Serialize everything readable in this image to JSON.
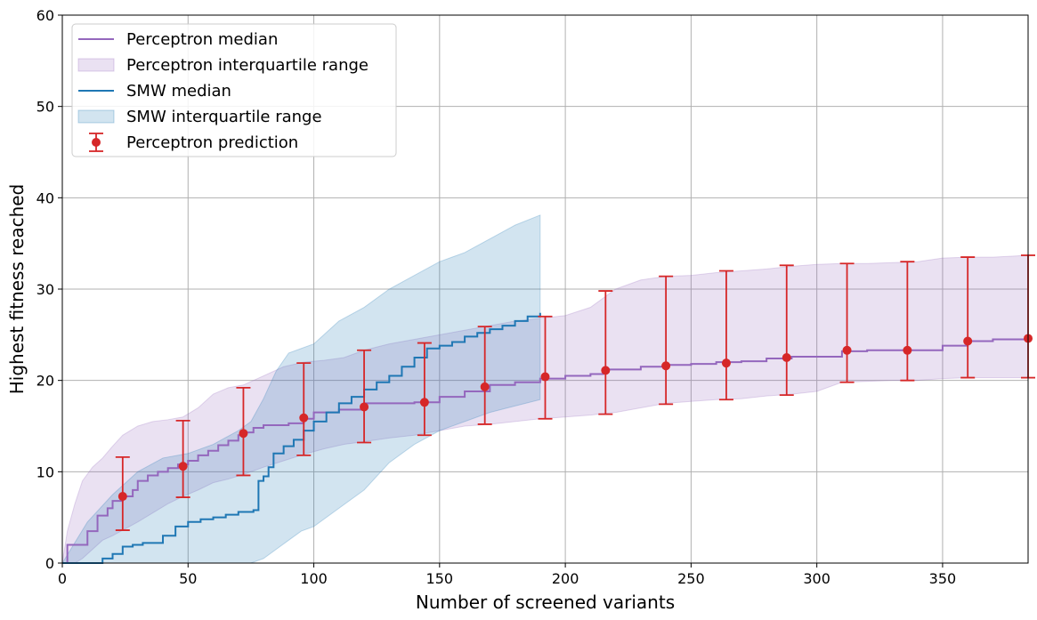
{
  "chart_data": {
    "type": "line",
    "title": "",
    "xlabel": "Number of screened variants",
    "ylabel": "Highest fitness reached",
    "xlim": [
      0,
      384
    ],
    "ylim": [
      0,
      60
    ],
    "xticks": [
      0,
      50,
      100,
      150,
      200,
      250,
      300,
      350
    ],
    "yticks": [
      0,
      10,
      20,
      30,
      40,
      50,
      60
    ],
    "grid": true,
    "legend_position": "top-left",
    "legend": [
      {
        "label": "Perceptron median",
        "kind": "line",
        "color": "#9467bd"
      },
      {
        "label": "Perceptron interquartile range",
        "kind": "band",
        "color": "#9467bd"
      },
      {
        "label": "SMW median",
        "kind": "line",
        "color": "#1f77b4"
      },
      {
        "label": "SMW interquartile range",
        "kind": "band",
        "color": "#1f77b4"
      },
      {
        "label": "Perceptron prediction",
        "kind": "errorbar",
        "color": "#d62728"
      }
    ],
    "series": [
      {
        "name": "Perceptron median",
        "kind": "step-line",
        "color": "#9467bd",
        "x": [
          0,
          2,
          8,
          10,
          14,
          18,
          20,
          24,
          28,
          30,
          34,
          38,
          42,
          46,
          50,
          54,
          58,
          62,
          66,
          70,
          72,
          76,
          80,
          90,
          96,
          100,
          110,
          120,
          140,
          150,
          160,
          170,
          180,
          190,
          200,
          210,
          215,
          230,
          240,
          250,
          260,
          270,
          280,
          290,
          300,
          310,
          320,
          330,
          340,
          350,
          360,
          370,
          384
        ],
        "y": [
          0,
          2,
          2,
          3.5,
          5.2,
          6.0,
          6.8,
          7.3,
          8.0,
          9.0,
          9.6,
          10.0,
          10.4,
          10.8,
          11.2,
          11.8,
          12.3,
          12.9,
          13.4,
          14.0,
          14.3,
          14.8,
          15.1,
          15.3,
          15.8,
          16.5,
          16.8,
          17.5,
          17.6,
          18.2,
          18.8,
          19.5,
          19.8,
          20.2,
          20.5,
          20.7,
          21.2,
          21.5,
          21.7,
          21.8,
          22.0,
          22.1,
          22.4,
          22.6,
          22.6,
          23.2,
          23.3,
          23.3,
          23.3,
          23.8,
          24.3,
          24.5,
          24.5
        ]
      },
      {
        "name": "SMW median",
        "kind": "step-line",
        "color": "#1f77b4",
        "x": [
          0,
          14,
          16,
          20,
          24,
          28,
          32,
          40,
          45,
          50,
          55,
          60,
          65,
          70,
          76,
          78,
          80,
          82,
          84,
          88,
          92,
          96,
          100,
          105,
          110,
          115,
          120,
          125,
          130,
          135,
          140,
          145,
          150,
          155,
          160,
          165,
          170,
          175,
          180,
          185,
          190
        ],
        "y": [
          0,
          0,
          0.5,
          1.0,
          1.8,
          2.0,
          2.2,
          3.0,
          4.0,
          4.5,
          4.8,
          5.0,
          5.3,
          5.6,
          5.8,
          9.0,
          9.5,
          10.5,
          12.0,
          12.8,
          13.5,
          14.5,
          15.5,
          16.5,
          17.5,
          18.2,
          19.0,
          19.8,
          20.5,
          21.5,
          22.5,
          23.5,
          23.8,
          24.2,
          24.8,
          25.2,
          25.6,
          26.0,
          26.5,
          27.0,
          27.4
        ]
      }
    ],
    "bands": [
      {
        "name": "Perceptron interquartile range",
        "color": "#9467bd",
        "x": [
          0,
          2,
          5,
          8,
          12,
          16,
          20,
          24,
          30,
          36,
          42,
          48,
          54,
          60,
          66,
          72,
          80,
          88,
          96,
          104,
          112,
          120,
          130,
          140,
          150,
          160,
          170,
          180,
          190,
          200,
          210,
          220,
          230,
          240,
          250,
          260,
          270,
          280,
          290,
          300,
          310,
          320,
          330,
          340,
          350,
          360,
          370,
          384
        ],
        "low": [
          0,
          0,
          0,
          0.5,
          1.5,
          2.5,
          3.0,
          3.6,
          4.5,
          5.5,
          6.5,
          7.3,
          8.0,
          8.8,
          9.2,
          9.7,
          10.5,
          11.2,
          11.9,
          12.5,
          13.0,
          13.3,
          13.7,
          14.0,
          14.5,
          15.0,
          15.2,
          15.5,
          15.8,
          16.0,
          16.2,
          16.5,
          17.0,
          17.5,
          17.7,
          17.9,
          18.0,
          18.3,
          18.5,
          18.8,
          19.8,
          19.9,
          20.0,
          20.0,
          20.2,
          20.3,
          20.3,
          20.3
        ],
        "high": [
          0,
          3.5,
          6.5,
          9.0,
          10.5,
          11.5,
          12.8,
          14.0,
          15.0,
          15.5,
          15.7,
          16.0,
          17.0,
          18.5,
          19.2,
          19.5,
          20.5,
          21.5,
          22.0,
          22.2,
          22.5,
          23.3,
          24.0,
          24.5,
          25.0,
          25.5,
          26.0,
          26.5,
          26.8,
          27.1,
          28.0,
          30.0,
          31.0,
          31.4,
          31.5,
          31.8,
          32.0,
          32.2,
          32.5,
          32.7,
          32.8,
          32.8,
          32.9,
          33.0,
          33.4,
          33.5,
          33.5,
          33.7
        ]
      },
      {
        "name": "SMW interquartile range",
        "color": "#1f77b4",
        "x": [
          0,
          10,
          20,
          24,
          30,
          40,
          50,
          60,
          70,
          75,
          80,
          85,
          90,
          95,
          100,
          110,
          120,
          130,
          140,
          150,
          160,
          170,
          180,
          190
        ],
        "low": [
          0,
          0,
          0,
          0,
          0,
          0,
          0,
          0,
          0,
          0,
          0.5,
          1.5,
          2.5,
          3.5,
          4.0,
          6.0,
          8.0,
          11.0,
          13.0,
          14.5,
          15.5,
          16.5,
          17.2,
          17.9
        ],
        "high": [
          0,
          4.5,
          7.5,
          8.5,
          10.0,
          11.5,
          12.0,
          13.0,
          14.5,
          15.5,
          18.0,
          21.0,
          23.0,
          23.5,
          24.0,
          26.5,
          28.0,
          30.0,
          31.5,
          33.0,
          34.0,
          35.5,
          37.0,
          38.1
        ]
      }
    ],
    "errorbars": {
      "name": "Perceptron prediction",
      "color": "#d62728",
      "x": [
        24,
        48,
        72,
        96,
        120,
        144,
        168,
        192,
        216,
        240,
        264,
        288,
        312,
        336,
        360,
        384
      ],
      "y": [
        7.3,
        10.6,
        14.2,
        15.9,
        17.1,
        17.6,
        19.3,
        20.4,
        21.1,
        21.6,
        21.9,
        22.5,
        23.3,
        23.3,
        24.3,
        24.6
      ],
      "low": [
        3.6,
        7.2,
        9.6,
        11.8,
        13.2,
        14.0,
        15.2,
        15.8,
        16.3,
        17.4,
        17.9,
        18.4,
        19.8,
        20.0,
        20.3,
        20.3
      ],
      "high": [
        11.6,
        15.6,
        19.2,
        21.9,
        23.3,
        24.1,
        25.9,
        27.0,
        29.8,
        31.4,
        32.0,
        32.6,
        32.8,
        33.0,
        33.5,
        33.7
      ]
    }
  }
}
